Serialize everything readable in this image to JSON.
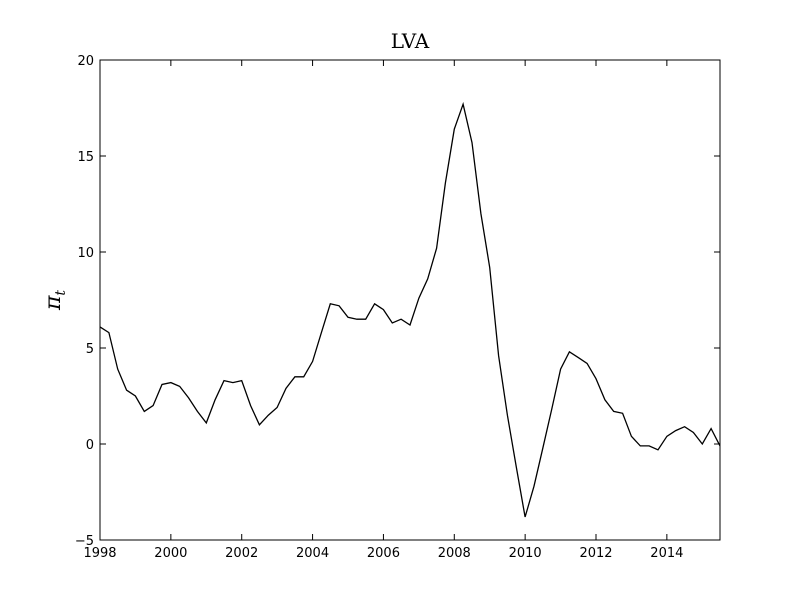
{
  "chart_data": {
    "type": "line",
    "title": "LVA",
    "xlabel": "",
    "ylabel": "π",
    "ylabel_subscript": "t",
    "xlim": [
      1998,
      2015.5
    ],
    "ylim": [
      -5,
      20
    ],
    "xticks": [
      "1998",
      "2000",
      "2002",
      "2004",
      "2006",
      "2008",
      "2010",
      "2012",
      "2014"
    ],
    "yticks": [
      "−5",
      "0",
      "5",
      "10",
      "15",
      "20"
    ],
    "grid": false,
    "line_color": "#000000",
    "series": [
      {
        "x": [
          1998.0,
          1998.25,
          1998.5,
          1998.75,
          1999.0,
          1999.25,
          1999.5,
          1999.75,
          2000.0,
          2000.25,
          2000.5,
          2000.75,
          2001.0,
          2001.25,
          2001.5,
          2001.75,
          2002.0,
          2002.25,
          2002.5,
          2002.75,
          2003.0,
          2003.25,
          2003.5,
          2003.75,
          2004.0,
          2004.25,
          2004.5,
          2004.75,
          2005.0,
          2005.25,
          2005.5,
          2005.75,
          2006.0,
          2006.25,
          2006.5,
          2006.75,
          2007.0,
          2007.25,
          2007.5,
          2007.75,
          2008.0,
          2008.25,
          2008.5,
          2008.75,
          2009.0,
          2009.25,
          2009.5,
          2009.75,
          2010.0,
          2010.25,
          2010.5,
          2010.75,
          2011.0,
          2011.25,
          2011.5,
          2011.75,
          2012.0,
          2012.25,
          2012.5,
          2012.75,
          2013.0,
          2013.25,
          2013.5,
          2013.75,
          2014.0,
          2014.25,
          2014.5,
          2014.75,
          2015.0,
          2015.25,
          2015.5
        ],
        "values": [
          6.1,
          5.8,
          3.9,
          2.8,
          2.5,
          1.7,
          2.0,
          3.1,
          3.2,
          3.0,
          2.4,
          1.7,
          1.1,
          2.3,
          3.3,
          3.2,
          3.3,
          2.0,
          1.0,
          1.5,
          1.9,
          2.9,
          3.5,
          3.5,
          4.3,
          5.8,
          7.3,
          7.2,
          6.6,
          6.5,
          6.5,
          7.3,
          7.0,
          6.3,
          6.5,
          6.2,
          7.6,
          8.6,
          10.2,
          13.6,
          16.4,
          17.7,
          15.7,
          12.0,
          9.2,
          4.6,
          1.5,
          -1.2,
          -3.8,
          -2.2,
          -0.2,
          1.8,
          3.9,
          4.8,
          4.5,
          4.2,
          3.4,
          2.3,
          1.7,
          1.6,
          0.4,
          -0.1,
          -0.1,
          -0.3,
          0.4,
          0.7,
          0.9,
          0.6,
          0.0,
          0.8,
          -0.1
        ]
      }
    ]
  }
}
